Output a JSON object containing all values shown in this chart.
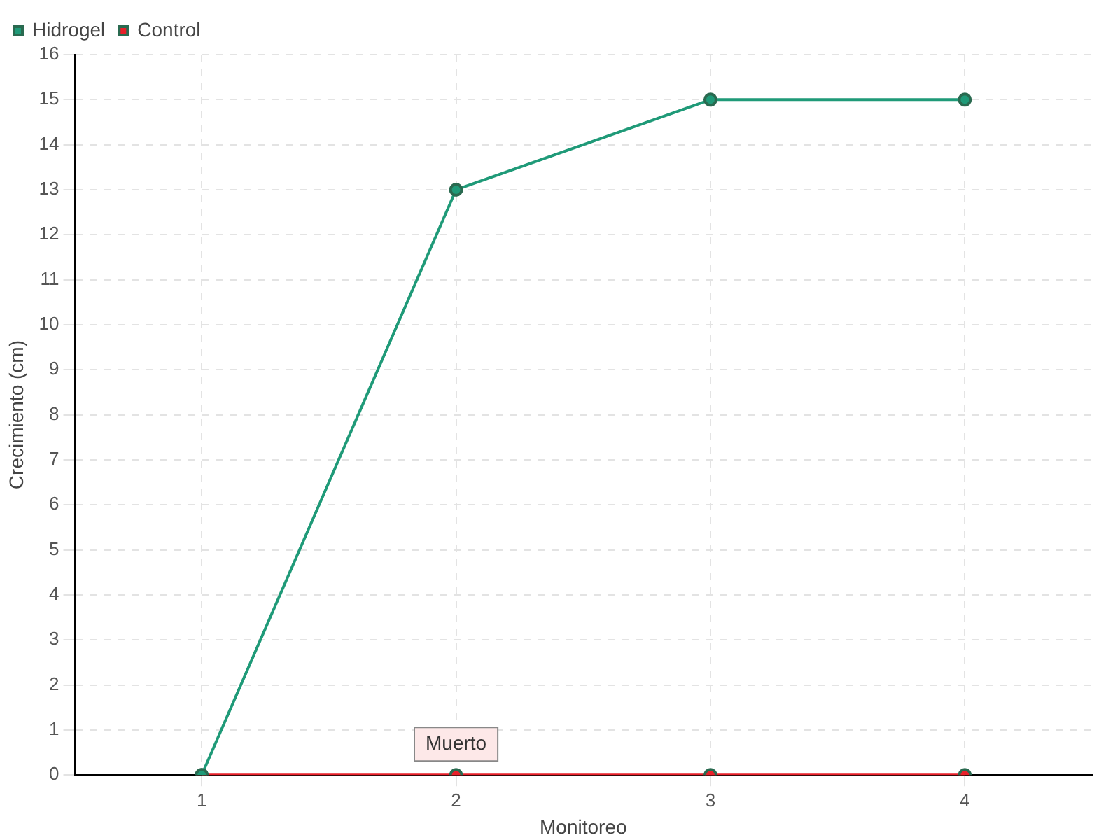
{
  "chart_data": {
    "type": "line",
    "xlabel": "Monitoreo",
    "ylabel": "Crecimiento (cm)",
    "categories": [
      "1",
      "2",
      "3",
      "4"
    ],
    "series": [
      {
        "name": "Hidrogel",
        "color": "#1f9a78",
        "values": [
          0,
          13,
          15,
          15
        ]
      },
      {
        "name": "Control",
        "color": "#e8202a",
        "values": [
          0,
          0,
          0,
          0
        ]
      }
    ],
    "ylim": [
      0,
      16
    ],
    "yticks": [
      0,
      1,
      2,
      3,
      4,
      5,
      6,
      7,
      8,
      9,
      10,
      11,
      12,
      13,
      14,
      15,
      16
    ],
    "grid": true,
    "legend": "top left",
    "marker": "circle",
    "line_style": "solid",
    "annotations": [
      {
        "text": "Muerto",
        "x": "2",
        "y": 0
      }
    ]
  }
}
